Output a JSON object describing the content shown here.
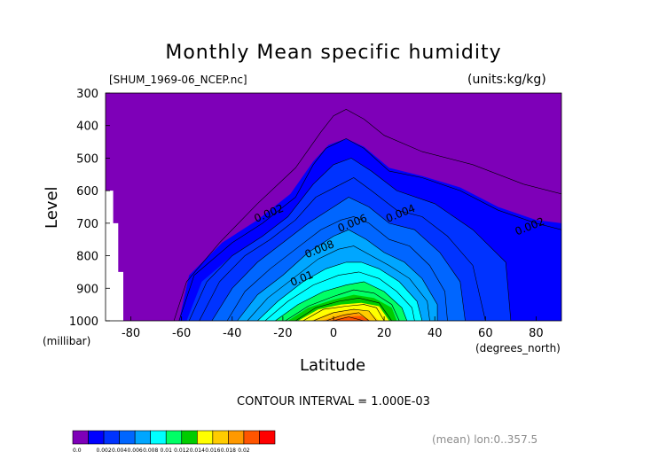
{
  "chart_data": {
    "type": "heatmap",
    "subtype": "filled-contour",
    "title": "Monthly Mean specific humidity",
    "file_label": "[SHUM_1969-06_NCEP.nc]",
    "units_label": "(units:kg/kg)",
    "xlabel": "Latitude",
    "x_unit_label": "(degrees_north)",
    "ylabel": "Level",
    "y_unit_label": "(millibar)",
    "xlim": [
      -90,
      90
    ],
    "ylim": [
      1000,
      300
    ],
    "x_ticks": [
      -80,
      -60,
      -40,
      -20,
      0,
      20,
      40,
      60,
      80
    ],
    "y_ticks": [
      300,
      400,
      500,
      600,
      700,
      800,
      900,
      1000
    ],
    "contour_interval_text": "CONTOUR INTERVAL = 1.000E-03",
    "footnote": "(mean) lon:0..357.5",
    "colorbar": {
      "levels": [
        "0.0",
        "0.002",
        "0.004",
        "0.006",
        "0.008",
        "0.01",
        "0.012",
        "0.014",
        "0.016",
        "0.018",
        "0.02"
      ],
      "colors": [
        "#7e00b8",
        "#0000ff",
        "#0033ff",
        "#0066ff",
        "#00a6ff",
        "#00ffff",
        "#00ff66",
        "#00cc00",
        "#ffff00",
        "#ffcc00",
        "#ff9900",
        "#ff5500",
        "#ff0000"
      ]
    },
    "contour_labels": [
      {
        "text": "0.002",
        "lat": -25,
        "level": 680
      },
      {
        "text": "0.004",
        "lat": 27,
        "level": 680
      },
      {
        "text": "0.002",
        "lat": 78,
        "level": 720
      },
      {
        "text": "0.006",
        "lat": 8,
        "level": 710
      },
      {
        "text": "0.008",
        "lat": -5,
        "level": 790
      },
      {
        "text": "0.01",
        "lat": -12,
        "level": 880
      }
    ],
    "contours": [
      {
        "value": 0.001,
        "max_level": 350,
        "profile": [
          [
            -63,
            1000
          ],
          [
            -58,
            880
          ],
          [
            -45,
            760
          ],
          [
            -30,
            640
          ],
          [
            -15,
            530
          ],
          [
            -5,
            420
          ],
          [
            0,
            370
          ],
          [
            5,
            350
          ],
          [
            12,
            380
          ],
          [
            20,
            430
          ],
          [
            35,
            480
          ],
          [
            55,
            520
          ],
          [
            75,
            580
          ],
          [
            90,
            610
          ]
        ]
      },
      {
        "value": 0.002,
        "max_level": 440,
        "profile": [
          [
            -61,
            1000
          ],
          [
            -55,
            860
          ],
          [
            -40,
            760
          ],
          [
            -28,
            700
          ],
          [
            -15,
            620
          ],
          [
            -8,
            520
          ],
          [
            -3,
            470
          ],
          [
            5,
            440
          ],
          [
            12,
            470
          ],
          [
            22,
            540
          ],
          [
            35,
            560
          ],
          [
            50,
            600
          ],
          [
            65,
            660
          ],
          [
            80,
            700
          ],
          [
            90,
            720
          ]
        ]
      },
      {
        "value": 0.003,
        "max_level": 500,
        "profile": [
          [
            -57,
            1000
          ],
          [
            -50,
            880
          ],
          [
            -40,
            800
          ],
          [
            -28,
            740
          ],
          [
            -18,
            680
          ],
          [
            -8,
            580
          ],
          [
            0,
            520
          ],
          [
            7,
            500
          ],
          [
            15,
            540
          ],
          [
            25,
            600
          ],
          [
            40,
            640
          ],
          [
            55,
            720
          ],
          [
            68,
            820
          ],
          [
            70,
            1000
          ]
        ]
      },
      {
        "value": 0.004,
        "max_level": 560,
        "profile": [
          [
            -53,
            1000
          ],
          [
            -45,
            880
          ],
          [
            -35,
            800
          ],
          [
            -25,
            750
          ],
          [
            -15,
            690
          ],
          [
            -7,
            620
          ],
          [
            3,
            580
          ],
          [
            8,
            560
          ],
          [
            15,
            600
          ],
          [
            25,
            660
          ],
          [
            35,
            680
          ],
          [
            45,
            740
          ],
          [
            55,
            830
          ],
          [
            60,
            1000
          ]
        ]
      },
      {
        "value": 0.005,
        "max_level": 620,
        "profile": [
          [
            -48,
            1000
          ],
          [
            -40,
            900
          ],
          [
            -30,
            820
          ],
          [
            -20,
            760
          ],
          [
            -10,
            700
          ],
          [
            0,
            650
          ],
          [
            6,
            620
          ],
          [
            14,
            650
          ],
          [
            22,
            700
          ],
          [
            32,
            720
          ],
          [
            42,
            790
          ],
          [
            50,
            880
          ],
          [
            52,
            1000
          ]
        ]
      },
      {
        "value": 0.006,
        "max_level": 680,
        "profile": [
          [
            -42,
            1000
          ],
          [
            -35,
            910
          ],
          [
            -25,
            840
          ],
          [
            -15,
            780
          ],
          [
            -5,
            720
          ],
          [
            3,
            690
          ],
          [
            8,
            680
          ],
          [
            14,
            700
          ],
          [
            22,
            750
          ],
          [
            30,
            770
          ],
          [
            38,
            830
          ],
          [
            44,
            910
          ],
          [
            45,
            1000
          ]
        ]
      },
      {
        "value": 0.007,
        "max_level": 720,
        "profile": [
          [
            -38,
            1000
          ],
          [
            -30,
            920
          ],
          [
            -20,
            860
          ],
          [
            -10,
            790
          ],
          [
            0,
            740
          ],
          [
            6,
            720
          ],
          [
            13,
            750
          ],
          [
            20,
            790
          ],
          [
            28,
            820
          ],
          [
            35,
            870
          ],
          [
            41,
            950
          ],
          [
            41,
            1000
          ]
        ]
      },
      {
        "value": 0.008,
        "max_level": 770,
        "profile": [
          [
            -34,
            1000
          ],
          [
            -26,
            930
          ],
          [
            -16,
            870
          ],
          [
            -6,
            810
          ],
          [
            2,
            780
          ],
          [
            8,
            770
          ],
          [
            15,
            800
          ],
          [
            22,
            830
          ],
          [
            30,
            870
          ],
          [
            37,
            940
          ],
          [
            38,
            1000
          ]
        ]
      },
      {
        "value": 0.009,
        "max_level": 810,
        "profile": [
          [
            -30,
            1000
          ],
          [
            -22,
            940
          ],
          [
            -12,
            880
          ],
          [
            -3,
            840
          ],
          [
            5,
            820
          ],
          [
            11,
            820
          ],
          [
            18,
            840
          ],
          [
            26,
            880
          ],
          [
            33,
            940
          ],
          [
            35,
            1000
          ]
        ]
      },
      {
        "value": 0.01,
        "max_level": 850,
        "profile": [
          [
            -27,
            1000
          ],
          [
            -18,
            940
          ],
          [
            -8,
            890
          ],
          [
            2,
            860
          ],
          [
            10,
            850
          ],
          [
            18,
            870
          ],
          [
            25,
            910
          ],
          [
            31,
            960
          ],
          [
            32,
            1000
          ]
        ]
      },
      {
        "value": 0.011,
        "max_level": 880,
        "profile": [
          [
            -23,
            1000
          ],
          [
            -14,
            950
          ],
          [
            -4,
            910
          ],
          [
            5,
            890
          ],
          [
            12,
            880
          ],
          [
            20,
            910
          ],
          [
            27,
            960
          ],
          [
            29,
            1000
          ]
        ]
      },
      {
        "value": 0.012,
        "max_level": 905,
        "profile": [
          [
            -19,
            1000
          ],
          [
            -10,
            955
          ],
          [
            0,
            925
          ],
          [
            8,
            905
          ],
          [
            16,
            915
          ],
          [
            23,
            950
          ],
          [
            26,
            1000
          ]
        ]
      },
      {
        "value": 0.013,
        "max_level": 930,
        "profile": [
          [
            -15,
            1000
          ],
          [
            -7,
            960
          ],
          [
            2,
            940
          ],
          [
            10,
            930
          ],
          [
            18,
            945
          ],
          [
            23,
            1000
          ]
        ]
      },
      {
        "value": 0.014,
        "max_level": 950,
        "profile": [
          [
            -12,
            1000
          ],
          [
            -4,
            965
          ],
          [
            5,
            955
          ],
          [
            12,
            950
          ],
          [
            17,
            960
          ],
          [
            20,
            1000
          ]
        ]
      },
      {
        "value": 0.015,
        "max_level": 965,
        "profile": [
          [
            -8,
            1000
          ],
          [
            0,
            975
          ],
          [
            8,
            965
          ],
          [
            14,
            970
          ],
          [
            17,
            1000
          ]
        ]
      },
      {
        "value": 0.016,
        "max_level": 975,
        "profile": [
          [
            -3,
            1000
          ],
          [
            4,
            982
          ],
          [
            10,
            975
          ],
          [
            14,
            1000
          ]
        ]
      },
      {
        "value": 0.017,
        "max_level": 985,
        "profile": [
          [
            0,
            1000
          ],
          [
            6,
            988
          ],
          [
            12,
            1000
          ]
        ]
      }
    ],
    "fill_bands": [
      {
        "upper": 0.001,
        "color": "#0000ff",
        "profile": [
          [
            -61,
            1000
          ],
          [
            -57,
            860
          ],
          [
            -44,
            760
          ],
          [
            -30,
            690
          ],
          [
            -17,
            610
          ],
          [
            -8,
            510
          ],
          [
            -2,
            460
          ],
          [
            5,
            440
          ],
          [
            12,
            465
          ],
          [
            22,
            530
          ],
          [
            35,
            555
          ],
          [
            50,
            590
          ],
          [
            65,
            650
          ],
          [
            80,
            690
          ],
          [
            90,
            700
          ],
          [
            90,
            1000
          ]
        ]
      },
      {
        "upper": 0.002,
        "color": "#0033ff",
        "profile": [
          [
            -58,
            1000
          ],
          [
            -52,
            880
          ],
          [
            -40,
            800
          ],
          [
            -28,
            740
          ],
          [
            -18,
            680
          ],
          [
            -8,
            580
          ],
          [
            0,
            520
          ],
          [
            7,
            500
          ],
          [
            15,
            540
          ],
          [
            25,
            600
          ],
          [
            40,
            640
          ],
          [
            55,
            720
          ],
          [
            68,
            820
          ],
          [
            70,
            1000
          ]
        ]
      },
      {
        "upper": 0.003,
        "color": "#0066ff",
        "profile": [
          [
            -48,
            1000
          ],
          [
            -40,
            900
          ],
          [
            -30,
            820
          ],
          [
            -20,
            760
          ],
          [
            -10,
            700
          ],
          [
            0,
            650
          ],
          [
            6,
            620
          ],
          [
            14,
            650
          ],
          [
            22,
            700
          ],
          [
            32,
            720
          ],
          [
            42,
            790
          ],
          [
            50,
            880
          ],
          [
            52,
            1000
          ]
        ]
      },
      {
        "upper": 0.004,
        "color": "#00a6ff",
        "profile": [
          [
            -38,
            1000
          ],
          [
            -30,
            920
          ],
          [
            -20,
            860
          ],
          [
            -10,
            790
          ],
          [
            0,
            740
          ],
          [
            6,
            720
          ],
          [
            13,
            750
          ],
          [
            20,
            790
          ],
          [
            28,
            820
          ],
          [
            35,
            870
          ],
          [
            41,
            950
          ],
          [
            41,
            1000
          ]
        ]
      },
      {
        "upper": 0.005,
        "color": "#00ffff",
        "profile": [
          [
            -30,
            1000
          ],
          [
            -22,
            940
          ],
          [
            -12,
            880
          ],
          [
            -3,
            840
          ],
          [
            5,
            820
          ],
          [
            11,
            820
          ],
          [
            18,
            840
          ],
          [
            26,
            880
          ],
          [
            33,
            940
          ],
          [
            35,
            1000
          ]
        ]
      },
      {
        "upper": 0.006,
        "color": "#00ff66",
        "profile": [
          [
            -23,
            1000
          ],
          [
            -14,
            950
          ],
          [
            -4,
            910
          ],
          [
            5,
            890
          ],
          [
            12,
            880
          ],
          [
            20,
            910
          ],
          [
            27,
            960
          ],
          [
            29,
            1000
          ]
        ]
      },
      {
        "upper": 0.007,
        "color": "#00cc00",
        "profile": [
          [
            -18,
            1000
          ],
          [
            -10,
            960
          ],
          [
            0,
            935
          ],
          [
            8,
            920
          ],
          [
            16,
            930
          ],
          [
            23,
            960
          ],
          [
            25,
            1000
          ]
        ]
      },
      {
        "upper": 0.008,
        "color": "#ffff00",
        "profile": [
          [
            -14,
            1000
          ],
          [
            -6,
            965
          ],
          [
            3,
            950
          ],
          [
            11,
            945
          ],
          [
            18,
            955
          ],
          [
            22,
            1000
          ]
        ]
      },
      {
        "upper": 0.009,
        "color": "#ffcc00",
        "profile": [
          [
            -9,
            1000
          ],
          [
            -1,
            975
          ],
          [
            7,
            965
          ],
          [
            14,
            970
          ],
          [
            18,
            1000
          ]
        ]
      },
      {
        "upper": 0.01,
        "color": "#ff9900",
        "profile": [
          [
            -5,
            1000
          ],
          [
            2,
            983
          ],
          [
            9,
            975
          ],
          [
            15,
            1000
          ]
        ]
      },
      {
        "upper": 0.011,
        "color": "#ff5500",
        "profile": [
          [
            -2,
            1000
          ],
          [
            5,
            988
          ],
          [
            11,
            985
          ],
          [
            14,
            1000
          ]
        ]
      }
    ],
    "missing_region": [
      [
        -90,
        1000
      ],
      [
        -90,
        600
      ],
      [
        -87,
        600
      ],
      [
        -87,
        700
      ],
      [
        -85,
        700
      ],
      [
        -85,
        850
      ],
      [
        -83,
        850
      ],
      [
        -83,
        1000
      ]
    ]
  }
}
